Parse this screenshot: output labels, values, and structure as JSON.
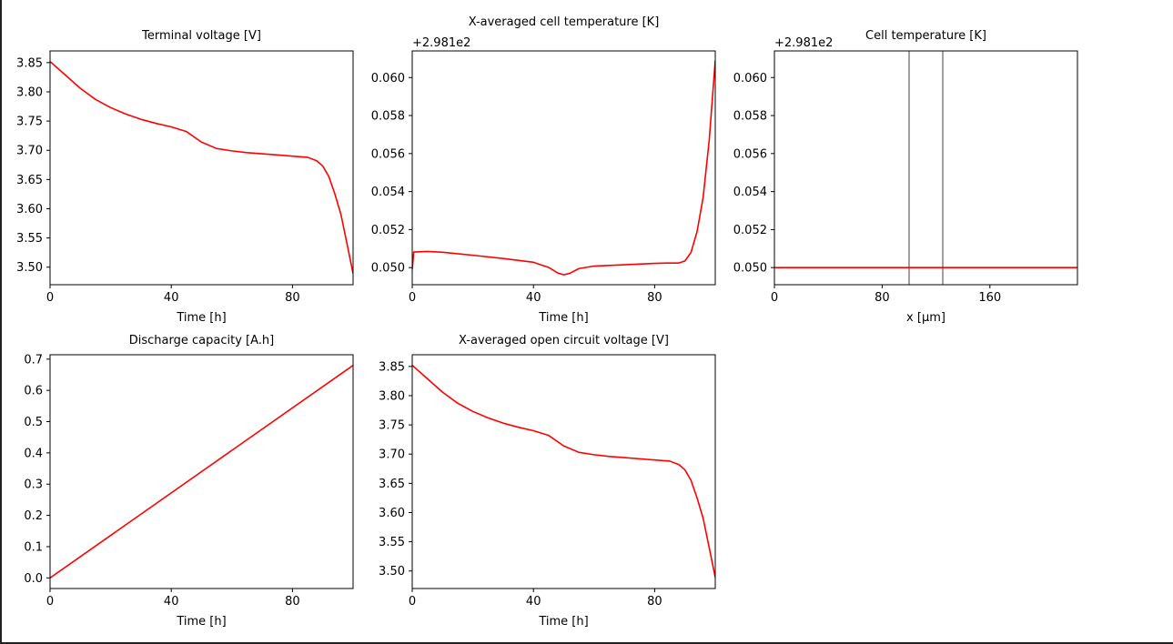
{
  "chart_data": [
    {
      "type": "line",
      "title": "Terminal voltage [V]",
      "xlabel": "Time [h]",
      "ylabel": "",
      "xlim": [
        0,
        100
      ],
      "ylim": [
        3.47,
        3.87
      ],
      "xticks": [
        0,
        40,
        80
      ],
      "xtick_labels": [
        "0",
        "40",
        "80"
      ],
      "yticks": [
        3.5,
        3.55,
        3.6,
        3.65,
        3.7,
        3.75,
        3.8,
        3.85
      ],
      "ytick_labels": [
        "3.50",
        "3.55",
        "3.60",
        "3.65",
        "3.70",
        "3.75",
        "3.80",
        "3.85"
      ],
      "offset_text": "",
      "series": [
        {
          "color": "#ff0000",
          "x": [
            0,
            5,
            10,
            15,
            20,
            25,
            30,
            35,
            40,
            45,
            50,
            55,
            60,
            65,
            70,
            75,
            80,
            85,
            88,
            90,
            92,
            94,
            96,
            98,
            100
          ],
          "y": [
            3.852,
            3.829,
            3.806,
            3.787,
            3.773,
            3.762,
            3.753,
            3.746,
            3.74,
            3.732,
            3.714,
            3.703,
            3.699,
            3.696,
            3.694,
            3.692,
            3.69,
            3.688,
            3.682,
            3.673,
            3.655,
            3.625,
            3.59,
            3.54,
            3.489
          ]
        }
      ],
      "vlines": []
    },
    {
      "type": "line",
      "title": "X-averaged cell temperature [K]",
      "xlabel": "Time [h]",
      "ylabel": "",
      "xlim": [
        0,
        100
      ],
      "ylim": [
        0.0491,
        0.0614
      ],
      "xticks": [
        0,
        40,
        80
      ],
      "xtick_labels": [
        "0",
        "40",
        "80"
      ],
      "yticks": [
        0.05,
        0.052,
        0.054,
        0.056,
        0.058,
        0.06
      ],
      "ytick_labels": [
        "0.050",
        "0.052",
        "0.054",
        "0.056",
        "0.058",
        "0.060"
      ],
      "offset_text": "+2.981e2",
      "series": [
        {
          "color": "#ff0000",
          "x": [
            0,
            0.5,
            5,
            10,
            20,
            30,
            40,
            45,
            48,
            50,
            52,
            55,
            60,
            70,
            80,
            84,
            88,
            90,
            92,
            94,
            96,
            98,
            100
          ],
          "y": [
            0.0499,
            0.05082,
            0.05085,
            0.05081,
            0.05065,
            0.05048,
            0.05028,
            0.05001,
            0.04972,
            0.04962,
            0.0497,
            0.04995,
            0.05008,
            0.05015,
            0.05022,
            0.05024,
            0.05024,
            0.05035,
            0.0508,
            0.0519,
            0.0537,
            0.0567,
            0.0609
          ]
        }
      ],
      "vlines": []
    },
    {
      "type": "line",
      "title": "Cell temperature [K]",
      "xlabel": "x [μm]",
      "ylabel": "",
      "xlim": [
        0,
        225
      ],
      "ylim": [
        0.0491,
        0.0614
      ],
      "xticks": [
        0,
        80,
        160
      ],
      "xtick_labels": [
        "0",
        "80",
        "160"
      ],
      "yticks": [
        0.05,
        0.052,
        0.054,
        0.056,
        0.058,
        0.06
      ],
      "ytick_labels": [
        "0.050",
        "0.052",
        "0.054",
        "0.056",
        "0.058",
        "0.060"
      ],
      "offset_text": "+2.981e2",
      "series": [
        {
          "color": "#ff0000",
          "x": [
            0,
            225
          ],
          "y": [
            0.05,
            0.05
          ]
        }
      ],
      "vlines": [
        100,
        125
      ]
    },
    {
      "type": "line",
      "title": "Discharge capacity [A.h]",
      "xlabel": "Time [h]",
      "ylabel": "",
      "xlim": [
        0,
        100
      ],
      "ylim": [
        -0.034,
        0.714
      ],
      "xticks": [
        0,
        40,
        80
      ],
      "xtick_labels": [
        "0",
        "40",
        "80"
      ],
      "yticks": [
        0,
        0.1,
        0.2,
        0.3,
        0.4,
        0.5,
        0.6,
        0.7
      ],
      "ytick_labels": [
        "0.0",
        "0.1",
        "0.2",
        "0.3",
        "0.4",
        "0.5",
        "0.6",
        "0.7"
      ],
      "offset_text": "",
      "series": [
        {
          "color": "#ff0000",
          "x": [
            0,
            100
          ],
          "y": [
            0,
            0.68
          ]
        }
      ],
      "vlines": []
    },
    {
      "type": "line",
      "title": "X-averaged open circuit voltage [V]",
      "xlabel": "Time [h]",
      "ylabel": "",
      "xlim": [
        0,
        100
      ],
      "ylim": [
        3.47,
        3.87
      ],
      "xticks": [
        0,
        40,
        80
      ],
      "xtick_labels": [
        "0",
        "40",
        "80"
      ],
      "yticks": [
        3.5,
        3.55,
        3.6,
        3.65,
        3.7,
        3.75,
        3.8,
        3.85
      ],
      "ytick_labels": [
        "3.50",
        "3.55",
        "3.60",
        "3.65",
        "3.70",
        "3.75",
        "3.80",
        "3.85"
      ],
      "offset_text": "",
      "series": [
        {
          "color": "#ff0000",
          "x": [
            0,
            5,
            10,
            15,
            20,
            25,
            30,
            35,
            40,
            45,
            50,
            55,
            60,
            65,
            70,
            75,
            80,
            85,
            88,
            90,
            92,
            94,
            96,
            98,
            100
          ],
          "y": [
            3.852,
            3.829,
            3.806,
            3.787,
            3.773,
            3.762,
            3.753,
            3.746,
            3.74,
            3.732,
            3.714,
            3.703,
            3.699,
            3.696,
            3.694,
            3.692,
            3.69,
            3.688,
            3.682,
            3.673,
            3.655,
            3.625,
            3.59,
            3.54,
            3.489
          ]
        }
      ],
      "vlines": []
    }
  ]
}
